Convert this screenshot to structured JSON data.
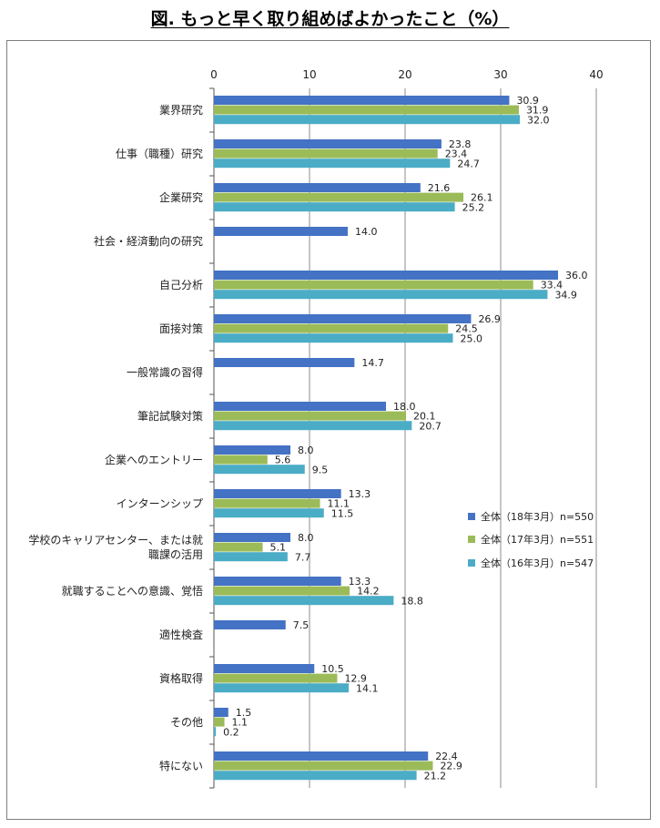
{
  "title": "図. もっと早く取り組めばよかったこと（%）",
  "chart_data": {
    "type": "bar",
    "orientation": "horizontal",
    "title": "図. もっと早く取り組めばよかったこと（%）",
    "xlim": [
      0,
      40
    ],
    "xticks": [
      "0",
      "10",
      "20",
      "30",
      "40"
    ],
    "grid": true,
    "legend_position": "right",
    "categories": [
      [
        "業界研究"
      ],
      [
        "仕事（職種）研究"
      ],
      [
        "企業研究"
      ],
      [
        "社会・経済動向の研究"
      ],
      [
        "自己分析"
      ],
      [
        "面接対策"
      ],
      [
        "一般常識の習得"
      ],
      [
        "筆記試験対策"
      ],
      [
        "企業へのエントリー"
      ],
      [
        "インターンシップ"
      ],
      [
        "学校のキャリアセンター、または就",
        "職課の活用"
      ],
      [
        "就職することへの意識、覚悟"
      ],
      [
        "適性検査"
      ],
      [
        "資格取得"
      ],
      [
        "その他"
      ],
      [
        "特にない"
      ]
    ],
    "series": [
      {
        "name": "全体（18年3月）n=550",
        "color": "#4472c4",
        "values": [
          30.9,
          23.8,
          21.6,
          14.0,
          36.0,
          26.9,
          14.7,
          18.0,
          8.0,
          13.3,
          8.0,
          13.3,
          7.5,
          10.5,
          1.5,
          22.4
        ],
        "labels": [
          "30.9",
          "23.8",
          "21.6",
          "14.0",
          "36.0",
          "26.9",
          "14.7",
          "18.0",
          "8.0",
          "13.3",
          "8.0",
          "13.3",
          "7.5",
          "10.5",
          "1.5",
          "22.4"
        ]
      },
      {
        "name": "全体（17年3月）n=551",
        "color": "#9bbb59",
        "values": [
          31.9,
          23.4,
          26.1,
          null,
          33.4,
          24.5,
          null,
          20.1,
          5.6,
          11.1,
          5.1,
          14.2,
          null,
          12.9,
          1.1,
          22.9
        ],
        "labels": [
          "31.9",
          "23.4",
          "26.1",
          "",
          "33.4",
          "24.5",
          "",
          "20.1",
          "5.6",
          "11.1",
          "5.1",
          "14.2",
          "",
          "12.9",
          "1.1",
          "22.9"
        ]
      },
      {
        "name": "全体（16年3月）n=547",
        "color": "#4bacc6",
        "values": [
          32.0,
          24.7,
          25.2,
          null,
          34.9,
          25.0,
          null,
          20.7,
          9.5,
          11.5,
          7.7,
          18.8,
          null,
          14.1,
          0.2,
          21.2
        ],
        "labels": [
          "32.0",
          "24.7",
          "25.2",
          "",
          "34.9",
          "25.0",
          "",
          "20.7",
          "9.5",
          "11.5",
          "7.7",
          "18.8",
          "",
          "14.1",
          "0.2",
          "21.2"
        ]
      }
    ]
  }
}
